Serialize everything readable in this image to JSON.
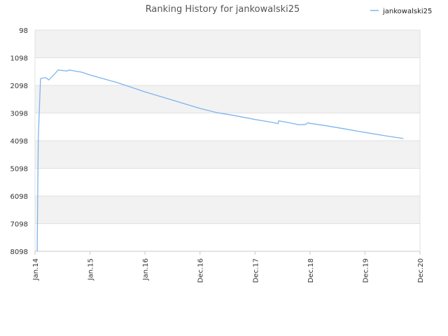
{
  "chart_data": {
    "type": "line",
    "title": "Ranking History for jankowalski25",
    "xlabel": "",
    "ylabel": "",
    "y_inverted": true,
    "ylim": [
      98,
      8098
    ],
    "y_ticks": [
      "98",
      "1098",
      "2098",
      "3098",
      "4098",
      "5098",
      "6098",
      "7098",
      "8098"
    ],
    "x_ticks": [
      "Jan.14",
      "Jan.15",
      "Jan.16",
      "Dec.16",
      "Dec.17",
      "Dec.18",
      "Dec.19",
      "Dec.20"
    ],
    "grid": "horizontal bands",
    "legend_position": "top-right",
    "series": [
      {
        "name": "jankowalski25",
        "color": "#7cb5ec",
        "points": [
          [
            0.04,
            8098
          ],
          [
            0.06,
            4000
          ],
          [
            0.1,
            1850
          ],
          [
            0.15,
            1830
          ],
          [
            0.2,
            1820
          ],
          [
            0.25,
            1900
          ],
          [
            0.35,
            1700
          ],
          [
            0.42,
            1540
          ],
          [
            0.5,
            1560
          ],
          [
            0.58,
            1580
          ],
          [
            0.62,
            1540
          ],
          [
            0.68,
            1560
          ],
          [
            0.75,
            1590
          ],
          [
            0.85,
            1620
          ],
          [
            1.0,
            1720
          ],
          [
            1.5,
            2000
          ],
          [
            2.0,
            2330
          ],
          [
            2.5,
            2630
          ],
          [
            3.0,
            2930
          ],
          [
            3.3,
            3080
          ],
          [
            3.6,
            3180
          ],
          [
            4.0,
            3330
          ],
          [
            4.3,
            3430
          ],
          [
            4.42,
            3480
          ],
          [
            4.43,
            3380
          ],
          [
            4.6,
            3440
          ],
          [
            4.8,
            3520
          ],
          [
            4.92,
            3510
          ],
          [
            4.96,
            3450
          ],
          [
            5.0,
            3470
          ],
          [
            5.3,
            3560
          ],
          [
            5.6,
            3660
          ],
          [
            6.0,
            3800
          ],
          [
            6.4,
            3930
          ],
          [
            6.7,
            4020
          ]
        ]
      }
    ]
  }
}
